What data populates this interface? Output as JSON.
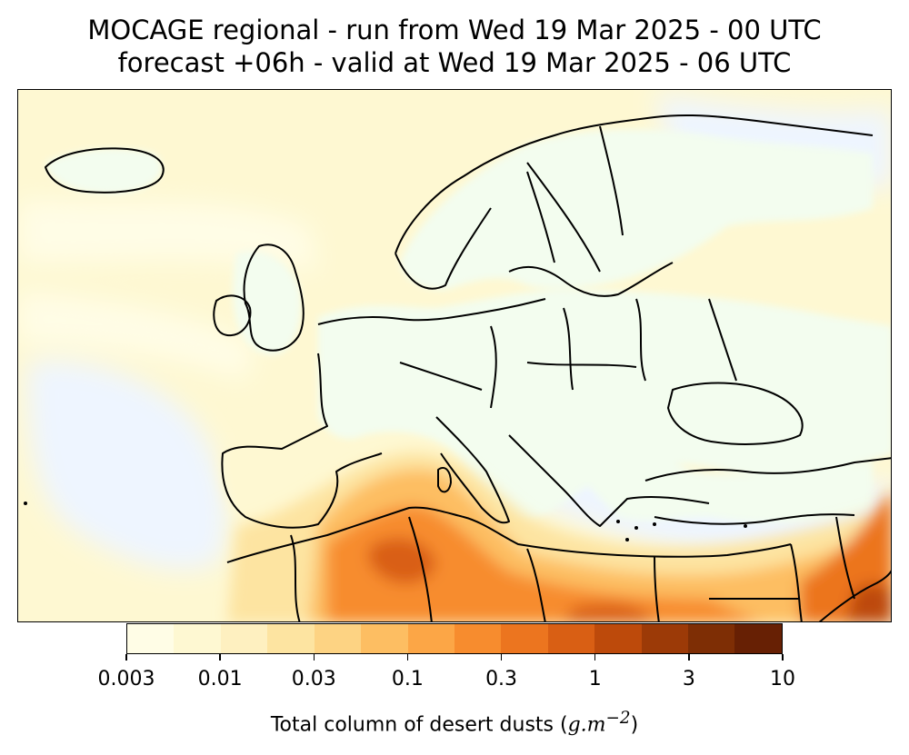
{
  "title": {
    "line1": "MOCAGE regional - run from Wed 19 Mar 2025 - 00 UTC",
    "line2": "forecast +06h - valid at Wed 19 Mar 2025 - 06 UTC"
  },
  "colorbar": {
    "tick_labels": [
      "0.003",
      "0.01",
      "0.03",
      "0.1",
      "0.3",
      "1",
      "3",
      "10"
    ],
    "colors": [
      "#fffde6",
      "#fef8d2",
      "#fef0c0",
      "#fde4a1",
      "#fdd383",
      "#fdbe62",
      "#fca646",
      "#f78c2e",
      "#ec751f",
      "#d95f14",
      "#bd4a0b",
      "#9c3a07",
      "#7e2e05",
      "#672004"
    ],
    "label_text": "Total column of desert dusts (",
    "label_unit": "g.m",
    "label_exp": "−2",
    "label_close": ")"
  },
  "map": {
    "ocean_color": "#eef5ff",
    "land_low_color": "#f3fdef"
  }
}
